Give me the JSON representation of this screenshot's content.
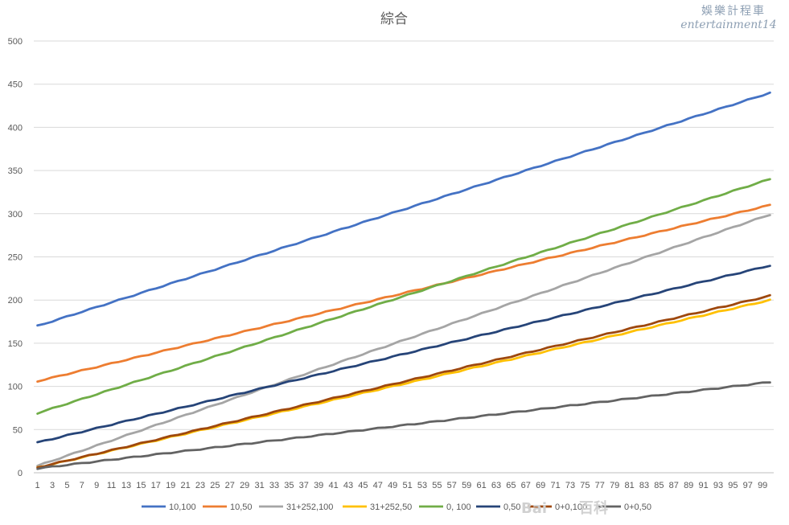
{
  "watermark": {
    "line1": "娛樂計程車",
    "line2": "entertainment14",
    "baidu": "Bai",
    "baidu_suffix": "百科"
  },
  "chart_data": {
    "type": "line",
    "title": "綜合",
    "xlabel": "",
    "ylabel": "",
    "x_range": [
      1,
      100
    ],
    "x_tick_labels": [
      "1",
      "3",
      "5",
      "7",
      "9",
      "11",
      "13",
      "15",
      "17",
      "19",
      "21",
      "23",
      "25",
      "27",
      "29",
      "31",
      "33",
      "35",
      "37",
      "39",
      "41",
      "43",
      "45",
      "47",
      "49",
      "51",
      "53",
      "55",
      "57",
      "59",
      "61",
      "63",
      "65",
      "67",
      "69",
      "71",
      "73",
      "75",
      "77",
      "79",
      "81",
      "83",
      "85",
      "87",
      "89",
      "91",
      "93",
      "95",
      "97",
      "99"
    ],
    "ylim": [
      0,
      500
    ],
    "y_ticks": [
      0,
      50,
      100,
      150,
      200,
      250,
      300,
      350,
      400,
      450,
      500
    ],
    "grid": true,
    "legend_position": "bottom",
    "series": [
      {
        "name": "10,100",
        "color": "#4472c4",
        "start": 170,
        "end": 440
      },
      {
        "name": "10,50",
        "color": "#ed7d31",
        "start": 106,
        "end": 310
      },
      {
        "name": "31+252,100",
        "color": "#a5a5a5",
        "start": 8,
        "end": 299
      },
      {
        "name": "31+252,50",
        "color": "#ffc000",
        "start": 6,
        "end": 200
      },
      {
        "name": "0, 100",
        "color": "#70ad47",
        "start": 69,
        "end": 340
      },
      {
        "name": "0,50",
        "color": "#264478",
        "start": 35,
        "end": 240
      },
      {
        "name": "0+0,100",
        "color": "#9e480e",
        "start": 6,
        "end": 205
      },
      {
        "name": "0+0,50",
        "color": "#636363",
        "start": 5,
        "end": 105
      }
    ]
  }
}
